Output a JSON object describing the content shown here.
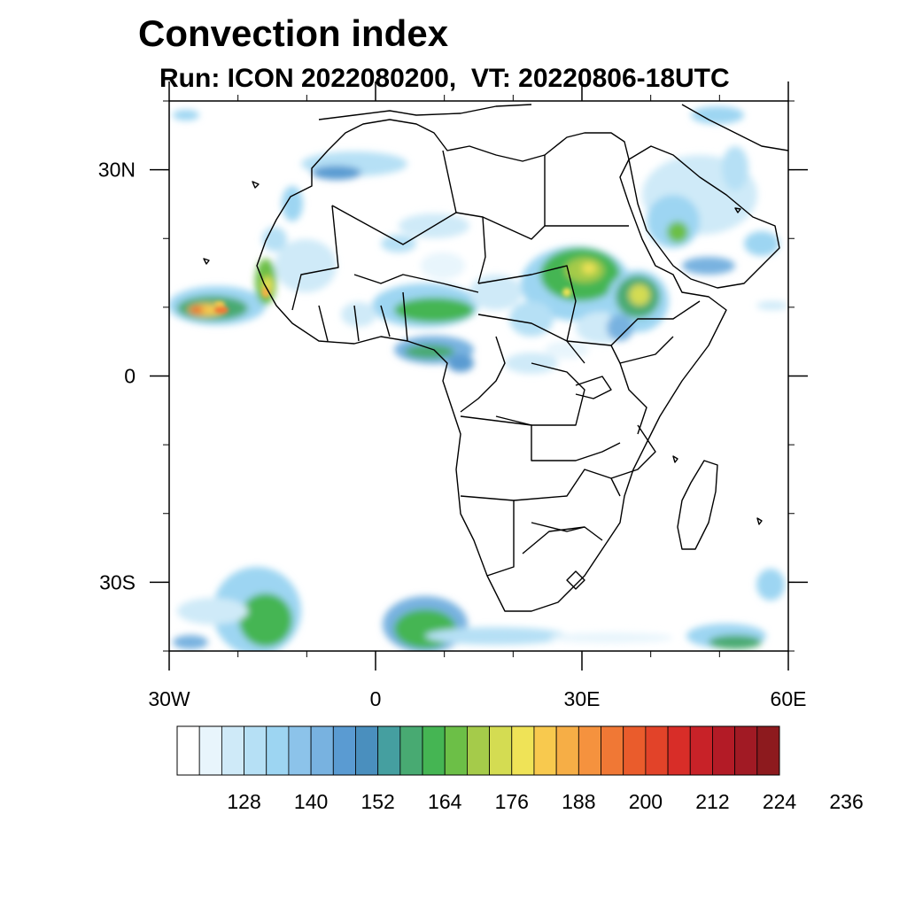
{
  "header": {
    "title": "Convection index",
    "subtitle": "Run: ICON 2022080200,  VT: 20220806-18UTC"
  },
  "map": {
    "lon_range": [
      -30,
      60
    ],
    "lat_range": [
      -40,
      40
    ],
    "lon_ticks": [
      {
        "value": -30,
        "label": "30W"
      },
      {
        "value": 0,
        "label": "0"
      },
      {
        "value": 30,
        "label": "30E"
      },
      {
        "value": 60,
        "label": "60E"
      }
    ],
    "lat_ticks": [
      {
        "value": 30,
        "label": "30N"
      },
      {
        "value": 0,
        "label": "0"
      },
      {
        "value": -30,
        "label": "30S"
      }
    ]
  },
  "colorbar": {
    "colors": [
      "#ffffff",
      "#e8f5fc",
      "#cfeaf8",
      "#b6e0f5",
      "#9dd5f2",
      "#8cc3ea",
      "#78b2e0",
      "#5a9bd2",
      "#4a8fbe",
      "#459fa0",
      "#48aa72",
      "#45b553",
      "#6cbf47",
      "#a5cb4a",
      "#d4dc52",
      "#efe357",
      "#f8c94e",
      "#f6ae46",
      "#f5923e",
      "#f07835",
      "#ea5c2c",
      "#e24329",
      "#d82d28",
      "#c82228",
      "#b31b26",
      "#a11a24",
      "#8d1a1e"
    ],
    "labels": [
      "128",
      "140",
      "152",
      "164",
      "176",
      "188",
      "200",
      "212",
      "224",
      "236"
    ]
  }
}
